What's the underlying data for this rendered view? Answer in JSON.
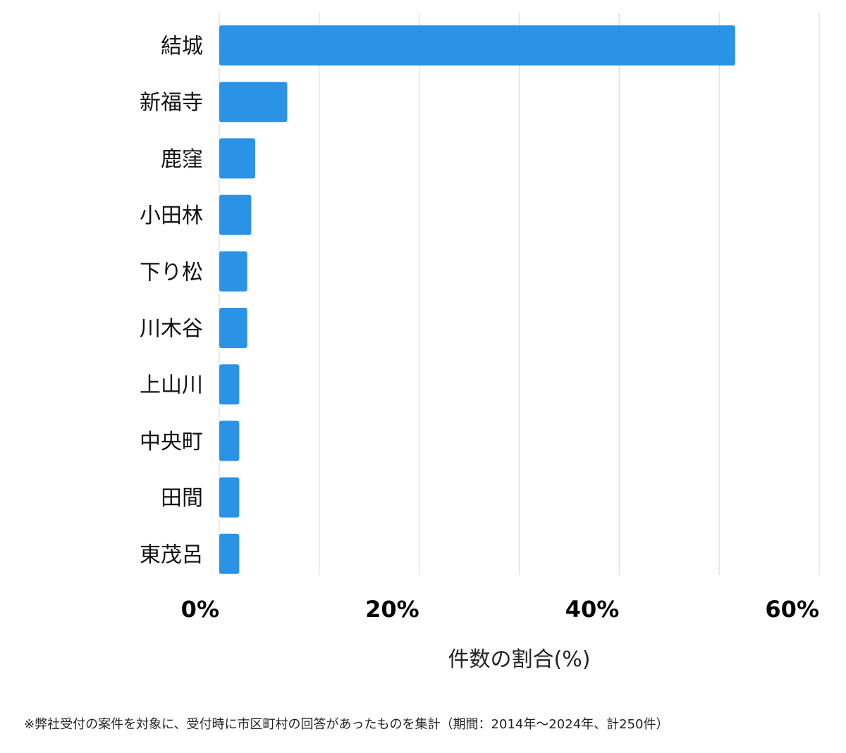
{
  "chart_data": {
    "type": "bar",
    "orientation": "horizontal",
    "categories": [
      "結城",
      "新福寺",
      "鹿窪",
      "小田林",
      "下り松",
      "川木谷",
      "上山川",
      "中央町",
      "田間",
      "東茂呂"
    ],
    "values": [
      51.6,
      6.8,
      3.6,
      3.2,
      2.8,
      2.8,
      2.0,
      2.0,
      2.0,
      2.0
    ],
    "xlabel": "件数の割合(%)",
    "ylabel": "",
    "xlim": [
      0,
      60
    ],
    "ticks": [
      0,
      20,
      40,
      60
    ],
    "tick_labels": [
      "0%",
      "20%",
      "40%",
      "60%"
    ],
    "grid": true,
    "bar_color": "#2a93e6"
  },
  "footnote": "※弊社受付の案件を対象に、受付時に市区町村の回答があったものを集計（期間：2014年〜2024年、計250件）"
}
